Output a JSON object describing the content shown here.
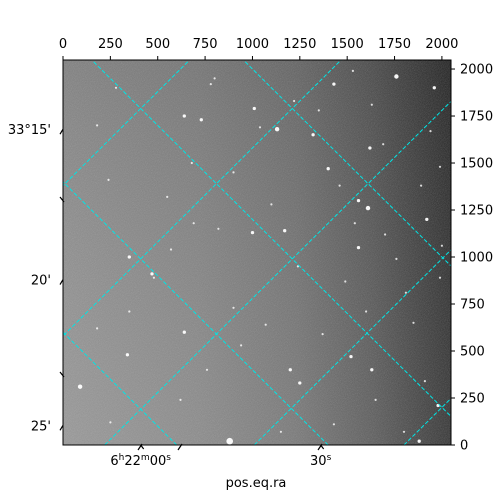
{
  "chart_data": {
    "type": "image",
    "xlabel": "pos.eq.ra",
    "pixel_axes": {
      "top_ticks": [
        0,
        250,
        500,
        750,
        1000,
        1250,
        1500,
        1750,
        2000
      ],
      "right_ticks": [
        0,
        250,
        500,
        750,
        1000,
        1250,
        1500,
        1750,
        2000
      ],
      "xlim": [
        0,
        2048
      ],
      "ylim": [
        0,
        2048
      ]
    },
    "world_axes": {
      "ra_ticks": [
        {
          "label_main": "6",
          "label_h": "h",
          "label_mid": "22",
          "label_m": "m",
          "label_tail": "00",
          "label_s": "s",
          "x_pix": 410
        },
        {
          "label_main": "30",
          "label_s": "s",
          "x_pix": 1360
        }
      ],
      "dec_ticks": [
        {
          "label": "33°15'",
          "y_pix": 1680
        },
        {
          "label": "20'",
          "y_pix": 880
        },
        {
          "label": "25'",
          "y_pix": 105
        }
      ]
    },
    "grid": {
      "color": "#00e5e5",
      "style": "dashed",
      "ra_lines_x_at_bottom": [
        -1380,
        -580,
        220,
        1010,
        1800,
        2600
      ],
      "dec_lines_x_at_bottom": [
        -1000,
        -200,
        600,
        1400,
        2200,
        3000
      ],
      "slope": 1.0
    },
    "image": {
      "colormap": "gray",
      "background": "bright-left to dark-right gradient",
      "stars": [
        [
          880,
          20,
          6
        ],
        [
          1880,
          20,
          3
        ],
        [
          1250,
          330,
          3
        ],
        [
          640,
          600,
          3
        ],
        [
          1520,
          470,
          3
        ],
        [
          1620,
          1580,
          3
        ],
        [
          1560,
          1050,
          3
        ],
        [
          1920,
          1200,
          3
        ],
        [
          1130,
          1680,
          4
        ],
        [
          1610,
          1260,
          4
        ],
        [
          1000,
          1130,
          3
        ],
        [
          1170,
          1140,
          3
        ],
        [
          480,
          890,
          2
        ],
        [
          470,
          910,
          3
        ],
        [
          1400,
          1470,
          3
        ],
        [
          1560,
          1300,
          3
        ],
        [
          640,
          1750,
          3
        ],
        [
          730,
          1730,
          3
        ],
        [
          1010,
          1790,
          3
        ],
        [
          1320,
          1650,
          3
        ],
        [
          1760,
          1960,
          4
        ],
        [
          1430,
          1920,
          3
        ],
        [
          1630,
          1810,
          2
        ],
        [
          1690,
          1600,
          2
        ],
        [
          800,
          1950,
          2
        ],
        [
          820,
          1150,
          2
        ],
        [
          1600,
          710,
          2
        ],
        [
          1850,
          650,
          2
        ],
        [
          1630,
          400,
          3
        ],
        [
          1980,
          210,
          3
        ],
        [
          1800,
          70,
          2
        ],
        [
          1150,
          70,
          2
        ],
        [
          1200,
          400,
          3
        ],
        [
          1810,
          810,
          2
        ],
        [
          1760,
          990,
          2
        ],
        [
          1540,
          1180,
          2
        ],
        [
          1460,
          1380,
          2
        ],
        [
          1940,
          1670,
          2
        ],
        [
          1350,
          1780,
          2
        ],
        [
          1990,
          1480,
          2
        ],
        [
          1960,
          1900,
          3
        ],
        [
          1220,
          1830,
          2
        ],
        [
          340,
          480,
          3
        ],
        [
          240,
          1410,
          2
        ],
        [
          180,
          1700,
          2
        ],
        [
          350,
          1000,
          3
        ],
        [
          350,
          710,
          2
        ],
        [
          550,
          1320,
          2
        ],
        [
          680,
          1500,
          2
        ],
        [
          900,
          1450,
          2
        ],
        [
          1100,
          1280,
          2
        ],
        [
          1240,
          950,
          2
        ],
        [
          1070,
          640,
          2
        ],
        [
          940,
          530,
          2
        ],
        [
          760,
          400,
          2
        ],
        [
          1430,
          110,
          2
        ],
        [
          1650,
          240,
          2
        ],
        [
          1890,
          1380,
          2
        ],
        [
          1700,
          1120,
          2
        ],
        [
          90,
          310,
          4
        ],
        [
          280,
          1900,
          2
        ],
        [
          780,
          1920,
          2
        ],
        [
          1040,
          1690,
          2
        ],
        [
          1530,
          1990,
          2
        ],
        [
          2000,
          1060,
          2
        ],
        [
          1910,
          340,
          2
        ],
        [
          1370,
          590,
          2
        ],
        [
          900,
          730,
          2
        ],
        [
          570,
          1040,
          2
        ],
        [
          620,
          240,
          2
        ],
        [
          250,
          120,
          2
        ],
        [
          1490,
          870,
          2
        ],
        [
          1990,
          890,
          2
        ],
        [
          180,
          620,
          2
        ],
        [
          690,
          1180,
          2
        ]
      ]
    }
  }
}
